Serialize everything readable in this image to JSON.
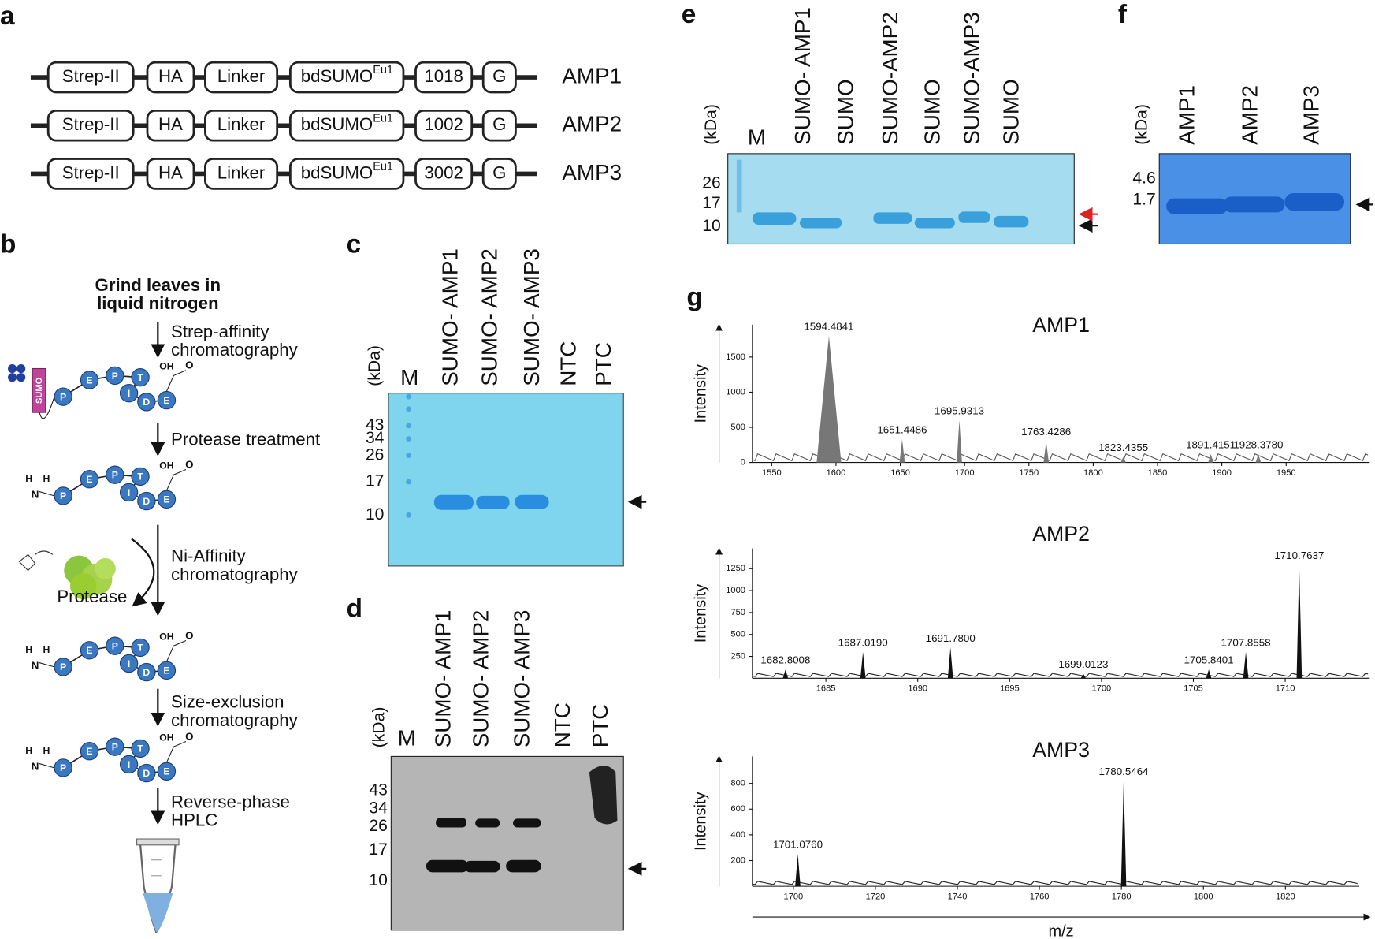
{
  "panel_labels": [
    "a",
    "b",
    "c",
    "d",
    "e",
    "f",
    "g"
  ],
  "a": {
    "superscript": "Eu1",
    "rows": [
      {
        "name": "AMP1",
        "domains": [
          "Strep-II",
          "HA",
          "Linker",
          "bdSUMO",
          "1018",
          "G"
        ]
      },
      {
        "name": "AMP2",
        "domains": [
          "Strep-II",
          "HA",
          "Linker",
          "bdSUMO",
          "1002",
          "G"
        ]
      },
      {
        "name": "AMP3",
        "domains": [
          "Strep-II",
          "HA",
          "Linker",
          "bdSUMO",
          "3002",
          "G"
        ]
      }
    ]
  },
  "b": {
    "start": [
      "Grind leaves in",
      "liquid nitrogen"
    ],
    "steps": [
      [
        "Strep-affinity",
        "chromatography"
      ],
      [
        "Protease treatment"
      ],
      [
        "Ni-Affinity",
        "chromatography"
      ],
      [
        "Size-exclusion",
        "chromatography"
      ],
      [
        "Reverse-phase",
        "HPLC"
      ]
    ],
    "protease": "Protease",
    "sumo": "SUMO",
    "peptide": [
      "P",
      "E",
      "P",
      "T",
      "I",
      "D",
      "E"
    ],
    "chem": {
      "oh": "OH",
      "o": "O",
      "h": "H",
      "n": "N"
    }
  },
  "c": {
    "unit": "(kDa)",
    "lanes": [
      "M",
      "SUMO- AMP1",
      "SUMO- AMP2",
      "SUMO- AMP3",
      "NTC",
      "PTC"
    ],
    "markers": [
      43,
      34,
      26,
      17,
      10
    ]
  },
  "d": {
    "unit": "(kDa)",
    "lanes": [
      "M",
      "SUMO- AMP1",
      "SUMO- AMP2",
      "SUMO- AMP3",
      "NTC",
      "PTC"
    ],
    "markers": [
      43,
      34,
      26,
      17,
      10
    ]
  },
  "e": {
    "unit": "(kDa)",
    "lanes": [
      "M",
      "SUMO- AMP1",
      "SUMO",
      "SUMO-AMP2",
      "SUMO",
      "SUMO-AMP3",
      "SUMO"
    ],
    "markers": [
      26,
      17,
      10
    ]
  },
  "f": {
    "unit": "(kDa)",
    "lanes": [
      "AMP1",
      "AMP2",
      "AMP3"
    ],
    "markers": [
      4.6,
      1.7
    ]
  },
  "g": {
    "y_label": "Intensity",
    "x_label": "m/z",
    "spectra": [
      {
        "title": "AMP1",
        "xlim": [
          1535,
          2015
        ],
        "ylim": [
          0,
          1960
        ],
        "xticks": [
          1550,
          1600,
          1650,
          1700,
          1750,
          1800,
          1850,
          1900,
          1950
        ],
        "yticks": [
          0,
          500,
          1000,
          1500
        ],
        "peaks": [
          {
            "value": 1594.4841,
            "intensity": 1800
          },
          {
            "value": 1651.4486,
            "intensity": 330
          },
          {
            "value": 1695.9313,
            "intensity": 600
          },
          {
            "value": 1763.4286,
            "intensity": 300
          },
          {
            "value": 1823.4355,
            "intensity": 80
          },
          {
            "value": 1891.4151,
            "intensity": 120
          },
          {
            "value": 1928.378,
            "label": "1928.3780",
            "intensity": 120
          }
        ]
      },
      {
        "title": "AMP2",
        "xlim": [
          1681,
          1714.6
        ],
        "ylim": [
          0,
          1480
        ],
        "xticks": [
          1685,
          1690,
          1695,
          1700,
          1705,
          1710
        ],
        "yticks": [
          250,
          500,
          750,
          1000,
          1250
        ],
        "peaks": [
          {
            "value": 1682.8008,
            "intensity": 100
          },
          {
            "value": 1687.019,
            "label": "1687.0190",
            "intensity": 300
          },
          {
            "value": 1691.78,
            "label": "1691.7800",
            "intensity": 350
          },
          {
            "value": 1699.0123,
            "intensity": 50
          },
          {
            "value": 1705.8401,
            "intensity": 100
          },
          {
            "value": 1707.8558,
            "intensity": 300
          },
          {
            "value": 1710.7637,
            "intensity": 1290
          }
        ]
      },
      {
        "title": "AMP3",
        "xlim": [
          1690,
          1838
        ],
        "ylim": [
          0,
          1010
        ],
        "xticks": [
          1700,
          1720,
          1740,
          1760,
          1780,
          1800,
          1820
        ],
        "yticks": [
          200,
          400,
          600,
          800
        ],
        "peaks": [
          {
            "value": 1701.076,
            "label": "1701.0760",
            "intensity": 250
          },
          {
            "value": 1780.5464,
            "intensity": 820
          }
        ]
      }
    ]
  }
}
